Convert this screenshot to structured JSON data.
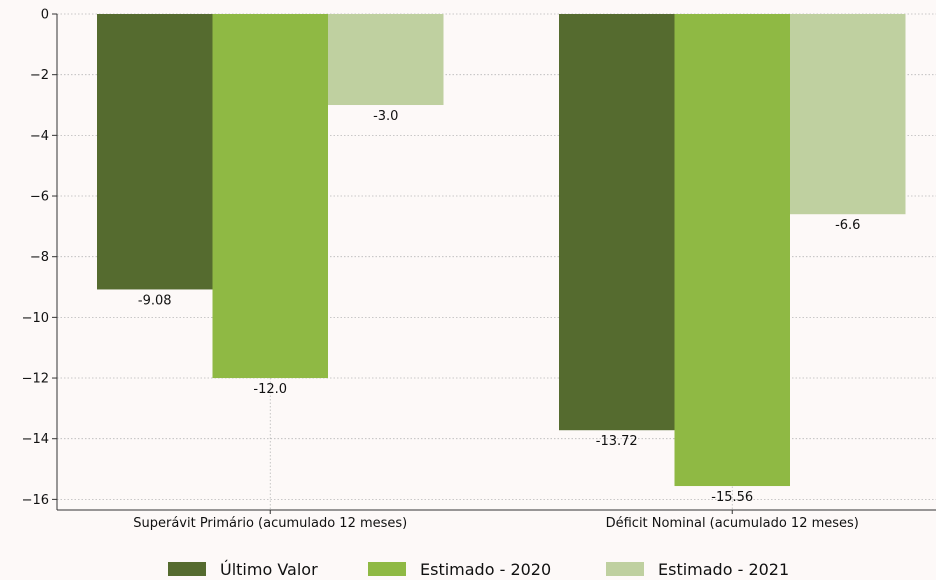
{
  "chart_data": {
    "type": "bar",
    "categories": [
      "Superávit Primário (acumulado 12 meses)",
      "Déficit Nominal (acumulado 12 meses)"
    ],
    "series": [
      {
        "name": "Último Valor",
        "values": [
          -9.08,
          -13.72
        ],
        "labels": [
          "-9.08",
          "-13.72"
        ],
        "color": "#556b2f"
      },
      {
        "name": "Estimado - 2020",
        "values": [
          -12.0,
          -15.56
        ],
        "labels": [
          "-12.0",
          "-15.56"
        ],
        "color": "#8fb944"
      },
      {
        "name": "Estimado - 2021",
        "values": [
          -3.0,
          -6.6
        ],
        "labels": [
          "-3.0",
          "-6.6"
        ],
        "color": "#bfd0a0"
      }
    ],
    "yticks": [
      0,
      -2,
      -4,
      -6,
      -8,
      -10,
      -12,
      -14,
      -16
    ],
    "ytick_labels": [
      "0",
      "−2",
      "−4",
      "−6",
      "−8",
      "−10",
      "−12",
      "−14",
      "−16"
    ],
    "ylim": [
      -16.35,
      0
    ],
    "grid": true,
    "legend_position": "bottom-center",
    "title": "",
    "xlabel": "",
    "ylabel": ""
  }
}
